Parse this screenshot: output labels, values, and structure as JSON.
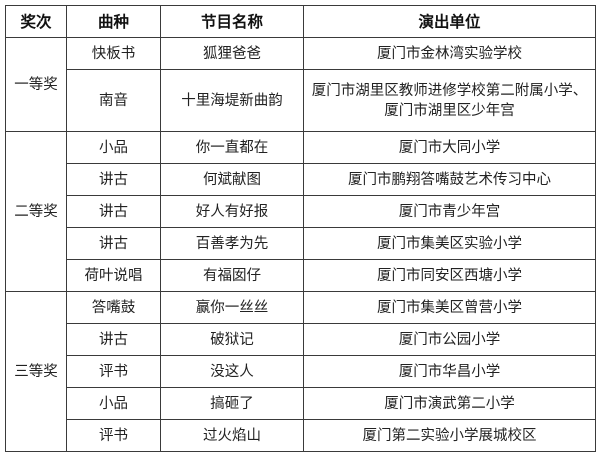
{
  "headers": [
    "奖次",
    "曲种",
    "节目名称",
    "演出单位"
  ],
  "groups": [
    {
      "award": "一等奖",
      "rows": [
        {
          "genre": "快板书",
          "title": "狐狸爸爸",
          "unit": "厦门市金林湾实验学校"
        },
        {
          "genre": "南音",
          "title": "十里海堤新曲韵",
          "unit": "厦门市湖里区教师进修学校第二附属小学、厦门市湖里区少年宫"
        }
      ]
    },
    {
      "award": "二等奖",
      "rows": [
        {
          "genre": "小品",
          "title": "你一直都在",
          "unit": "厦门市大同小学"
        },
        {
          "genre": "讲古",
          "title": "何斌献图",
          "unit": "厦门市鹏翔答嘴鼓艺术传习中心"
        },
        {
          "genre": "讲古",
          "title": "好人有好报",
          "unit": "厦门市青少年宫"
        },
        {
          "genre": "讲古",
          "title": "百善孝为先",
          "unit": "厦门市集美区实验小学"
        },
        {
          "genre": "荷叶说唱",
          "title": "有福囡仔",
          "unit": "厦门市同安区西塘小学"
        }
      ]
    },
    {
      "award": "三等奖",
      "rows": [
        {
          "genre": "答嘴鼓",
          "title": "赢你一丝丝",
          "unit": "厦门市集美区曾营小学"
        },
        {
          "genre": "讲古",
          "title": "破狱记",
          "unit": "厦门市公园小学"
        },
        {
          "genre": "评书",
          "title": "没这人",
          "unit": "厦门市华昌小学"
        },
        {
          "genre": "小品",
          "title": "搞砸了",
          "unit": "厦门市演武第二小学"
        },
        {
          "genre": "评书",
          "title": "过火焰山",
          "unit": "厦门第二实验小学展城校区"
        }
      ]
    }
  ]
}
